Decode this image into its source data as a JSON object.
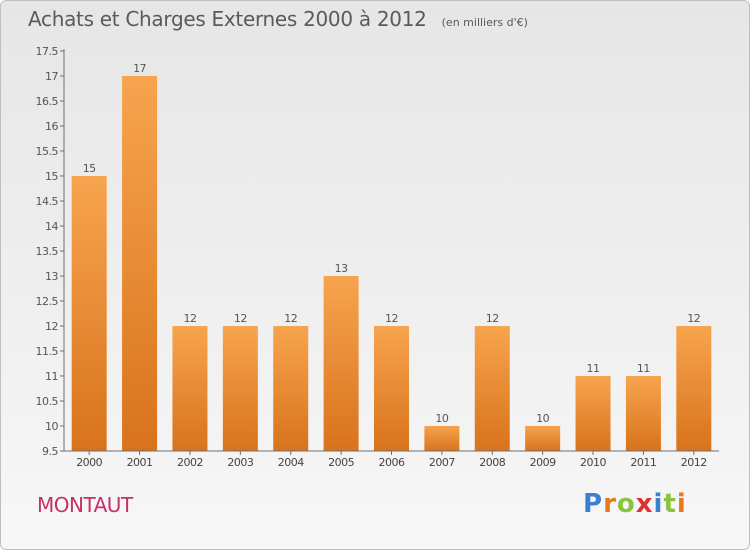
{
  "header": {
    "title": "Achats et Charges Externes 2000 à 2012",
    "unit": "(en milliers d'€)"
  },
  "footer": {
    "town": "MONTAUT",
    "logo": "Proxiti"
  },
  "colors": {
    "bar_top": "#f7a44e",
    "bar_bottom": "#d8731c",
    "axis": "#6f6f6f",
    "town": "#c8306a",
    "logo": [
      "#3a7fd0",
      "#e87a1e",
      "#8ac43c",
      "#e0302a",
      "#3a7fd0",
      "#8ac43c",
      "#e87a1e"
    ]
  },
  "chart_data": {
    "type": "bar",
    "title": "Achats et Charges Externes 2000 à 2012",
    "subtitle": "(en milliers d'€)",
    "categories": [
      "2000",
      "2001",
      "2002",
      "2003",
      "2004",
      "2005",
      "2006",
      "2007",
      "2008",
      "2009",
      "2010",
      "2011",
      "2012"
    ],
    "values": [
      15,
      17,
      12,
      12,
      12,
      13,
      12,
      10,
      12,
      10,
      11,
      11,
      12
    ],
    "value_labels": [
      "15",
      "17",
      "12",
      "12",
      "12",
      "13",
      "12",
      "10",
      "12",
      "10",
      "11",
      "11",
      "12"
    ],
    "ylim": [
      9.5,
      17.5
    ],
    "yticks": [
      9.5,
      10,
      10.5,
      11,
      11.5,
      12,
      12.5,
      13,
      13.5,
      14,
      14.5,
      15,
      15.5,
      16,
      16.5,
      17,
      17.5
    ],
    "ytick_labels": [
      "9.5",
      "10",
      "10.5",
      "11",
      "11.5",
      "12",
      "12.5",
      "13",
      "13.5",
      "14",
      "14.5",
      "15",
      "15.5",
      "16",
      "16.5",
      "17",
      "17.5"
    ],
    "xlabel": "",
    "ylabel": "",
    "grid": false,
    "legend": "none"
  }
}
